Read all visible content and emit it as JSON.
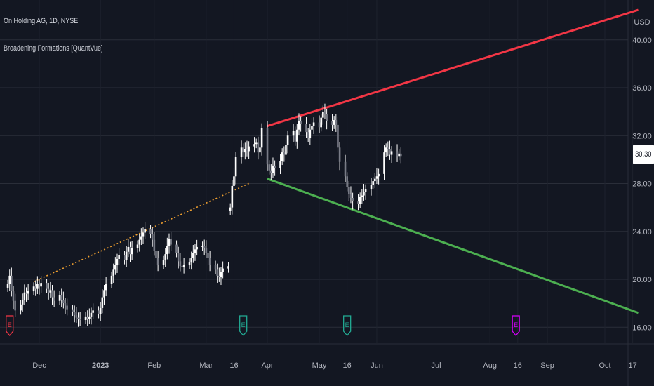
{
  "header": {
    "symbol_line": "On Holding AG, 1D, NYSE",
    "indicator_line": "Broadening Formations [QuantVue]",
    "currency": "USD",
    "last_price": "30.30"
  },
  "colors": {
    "background": "#131722",
    "grid": "#2a2e39",
    "candle": "#ffffff",
    "resistance": "#f23645",
    "support": "#4caf50",
    "trend": "#f0a030",
    "earnings_red": "#f23645",
    "earnings_teal": "#22ab94",
    "earnings_purple": "#d500f9",
    "axis_text": "#b2b5be"
  },
  "chart_data": {
    "type": "candlestick",
    "title": "On Holding AG, 1D, NYSE",
    "y_ticks": [
      "16.00",
      "20.00",
      "24.00",
      "28.00",
      "32.00",
      "36.00",
      "40.00"
    ],
    "ylim": [
      15,
      42
    ],
    "x_ticks": [
      {
        "label": "Dec",
        "date": "2022-12-01"
      },
      {
        "label": "2023",
        "date": "2023-01-03"
      },
      {
        "label": "Feb",
        "date": "2023-02-01"
      },
      {
        "label": "Mar",
        "date": "2023-03-01"
      },
      {
        "label": "16",
        "date": "2023-03-16"
      },
      {
        "label": "Apr",
        "date": "2023-04-03"
      },
      {
        "label": "May",
        "date": "2023-05-01"
      },
      {
        "label": "16",
        "date": "2023-05-16"
      },
      {
        "label": "Jun",
        "date": "2023-06-01"
      },
      {
        "label": "Jul",
        "date": "2023-07-03"
      },
      {
        "label": "Aug",
        "date": "2023-08-01"
      },
      {
        "label": "16",
        "date": "2023-08-16"
      },
      {
        "label": "Sep",
        "date": "2023-09-01"
      },
      {
        "label": "Oct",
        "date": "2023-10-02"
      },
      {
        "label": "17",
        "date": "2023-10-17"
      }
    ],
    "series": [
      {
        "type": "candles",
        "segment": "first",
        "start_date": "2022-11-14",
        "end_date": "2023-03-13",
        "closes": [
          19.6,
          20.3,
          19.0,
          18.2,
          17.4,
          17.9,
          18.3,
          18.9,
          18.8,
          19.0,
          19.4,
          19.2,
          19.6,
          19.4,
          19.7,
          19.2,
          18.9,
          19.1,
          18.5,
          18.2,
          18.7,
          18.3,
          18.0,
          17.8,
          17.5,
          17.3,
          17.0,
          16.8,
          16.7,
          16.6,
          16.9,
          16.7,
          16.9,
          17.2,
          17.4,
          17.1,
          17.6,
          18.5,
          19.1,
          19.6,
          20.3,
          20.8,
          21.2,
          21.7,
          22.0,
          21.6,
          22.3,
          22.7,
          22.1,
          22.6,
          22.9,
          23.3,
          23.6,
          23.9,
          24.2,
          23.8,
          23.3,
          22.4,
          21.8,
          21.2,
          21.6,
          22.1,
          22.8,
          23.4,
          22.9,
          22.2,
          21.5,
          21.1,
          21.0,
          21.2,
          21.4,
          21.8,
          22.2,
          22.5,
          22.7,
          22.8,
          22.6,
          22.2,
          21.8,
          21.2,
          20.8,
          20.3,
          20.2,
          20.6,
          20.9,
          21.1,
          21.3
        ]
      },
      {
        "type": "candles",
        "segment": "second",
        "start_date": "2023-03-14",
        "end_date": "2023-06-14",
        "closes": [
          26.0,
          27.8,
          28.6,
          30.2,
          31.0,
          30.6,
          30.9,
          30.7,
          31.1,
          31.3,
          31.4,
          30.6,
          31.0,
          32.6,
          29.6,
          29.1,
          28.9,
          29.5,
          29.3,
          29.9,
          30.6,
          30.4,
          31.2,
          32.0,
          32.4,
          31.5,
          32.5,
          33.2,
          33.0,
          32.3,
          31.8,
          32.5,
          32.8,
          33.1,
          32.7,
          33.5,
          34.0,
          33.8,
          33.2,
          32.9,
          33.3,
          32.9,
          31.0,
          29.8,
          28.6,
          27.7,
          27.1,
          26.8,
          26.5,
          26.3,
          26.9,
          27.0,
          27.3,
          27.5,
          27.9,
          28.2,
          28.4,
          28.6,
          28.8,
          30.6,
          31.0,
          30.9,
          30.4,
          30.7,
          30.3,
          30.5,
          30.3
        ]
      },
      {
        "type": "line",
        "name": "",
        "points": [
          {
            "x": "2023-04-03",
            "y": 32.8
          },
          {
            "x": "2023-10-20",
            "y": 42.5
          }
        ]
      },
      {
        "type": "line",
        "name": "",
        "points": [
          {
            "x": "2023-04-03",
            "y": 28.4
          },
          {
            "x": "2023-10-20",
            "y": 17.2
          }
        ]
      },
      {
        "type": "line",
        "name": "",
        "style": "dotted",
        "points": [
          {
            "x": "2022-11-28",
            "y": 19.8
          },
          {
            "x": "2023-03-24",
            "y": 28.0
          }
        ]
      }
    ],
    "earnings_markers": [
      {
        "date": "2022-11-15",
        "label": "E",
        "color": "#f23645"
      },
      {
        "date": "2023-03-21",
        "label": "E",
        "color": "#22ab94"
      },
      {
        "date": "2023-05-16",
        "label": "E",
        "color": "#22ab94"
      },
      {
        "date": "2023-08-15",
        "label": "E",
        "color": "#d500f9"
      }
    ],
    "grid": true
  }
}
